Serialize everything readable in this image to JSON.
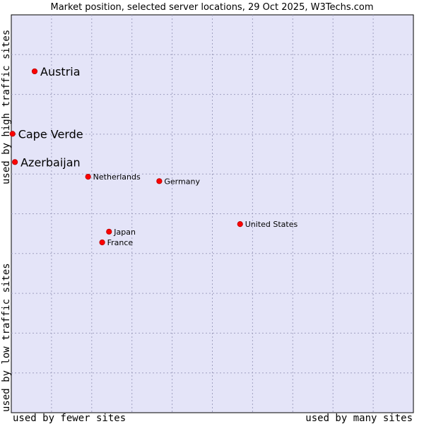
{
  "chart_data": {
    "type": "scatter",
    "title": "Market position, selected server locations, 29 Oct 2025, W3Techs.com",
    "y_label_high": "used by high traffic sites",
    "y_label_low": "used by low traffic sites",
    "x_label_left": "used by fewer sites",
    "x_label_right": "used by many sites",
    "xlim": [
      0,
      100
    ],
    "ylim": [
      0,
      100
    ],
    "grid": true,
    "colors": {
      "plot_background": "#e4e4f8",
      "grid": "#a0a0c0",
      "marker": "#ff0000",
      "marker_edge": "#c00000"
    },
    "points": [
      {
        "name": "Austria",
        "x": 5.8,
        "y": 85.8,
        "emphasis": true
      },
      {
        "name": "Cape Verde",
        "x": 0.3,
        "y": 70.1,
        "emphasis": true
      },
      {
        "name": "Azerbaijan",
        "x": 0.9,
        "y": 63.0,
        "emphasis": true
      },
      {
        "name": "Netherlands",
        "x": 19.1,
        "y": 59.3,
        "emphasis": false
      },
      {
        "name": "Germany",
        "x": 36.8,
        "y": 58.2,
        "emphasis": false
      },
      {
        "name": "United States",
        "x": 56.9,
        "y": 47.4,
        "emphasis": false
      },
      {
        "name": "Japan",
        "x": 24.3,
        "y": 45.5,
        "emphasis": false
      },
      {
        "name": "France",
        "x": 22.6,
        "y": 42.8,
        "emphasis": false
      }
    ]
  }
}
